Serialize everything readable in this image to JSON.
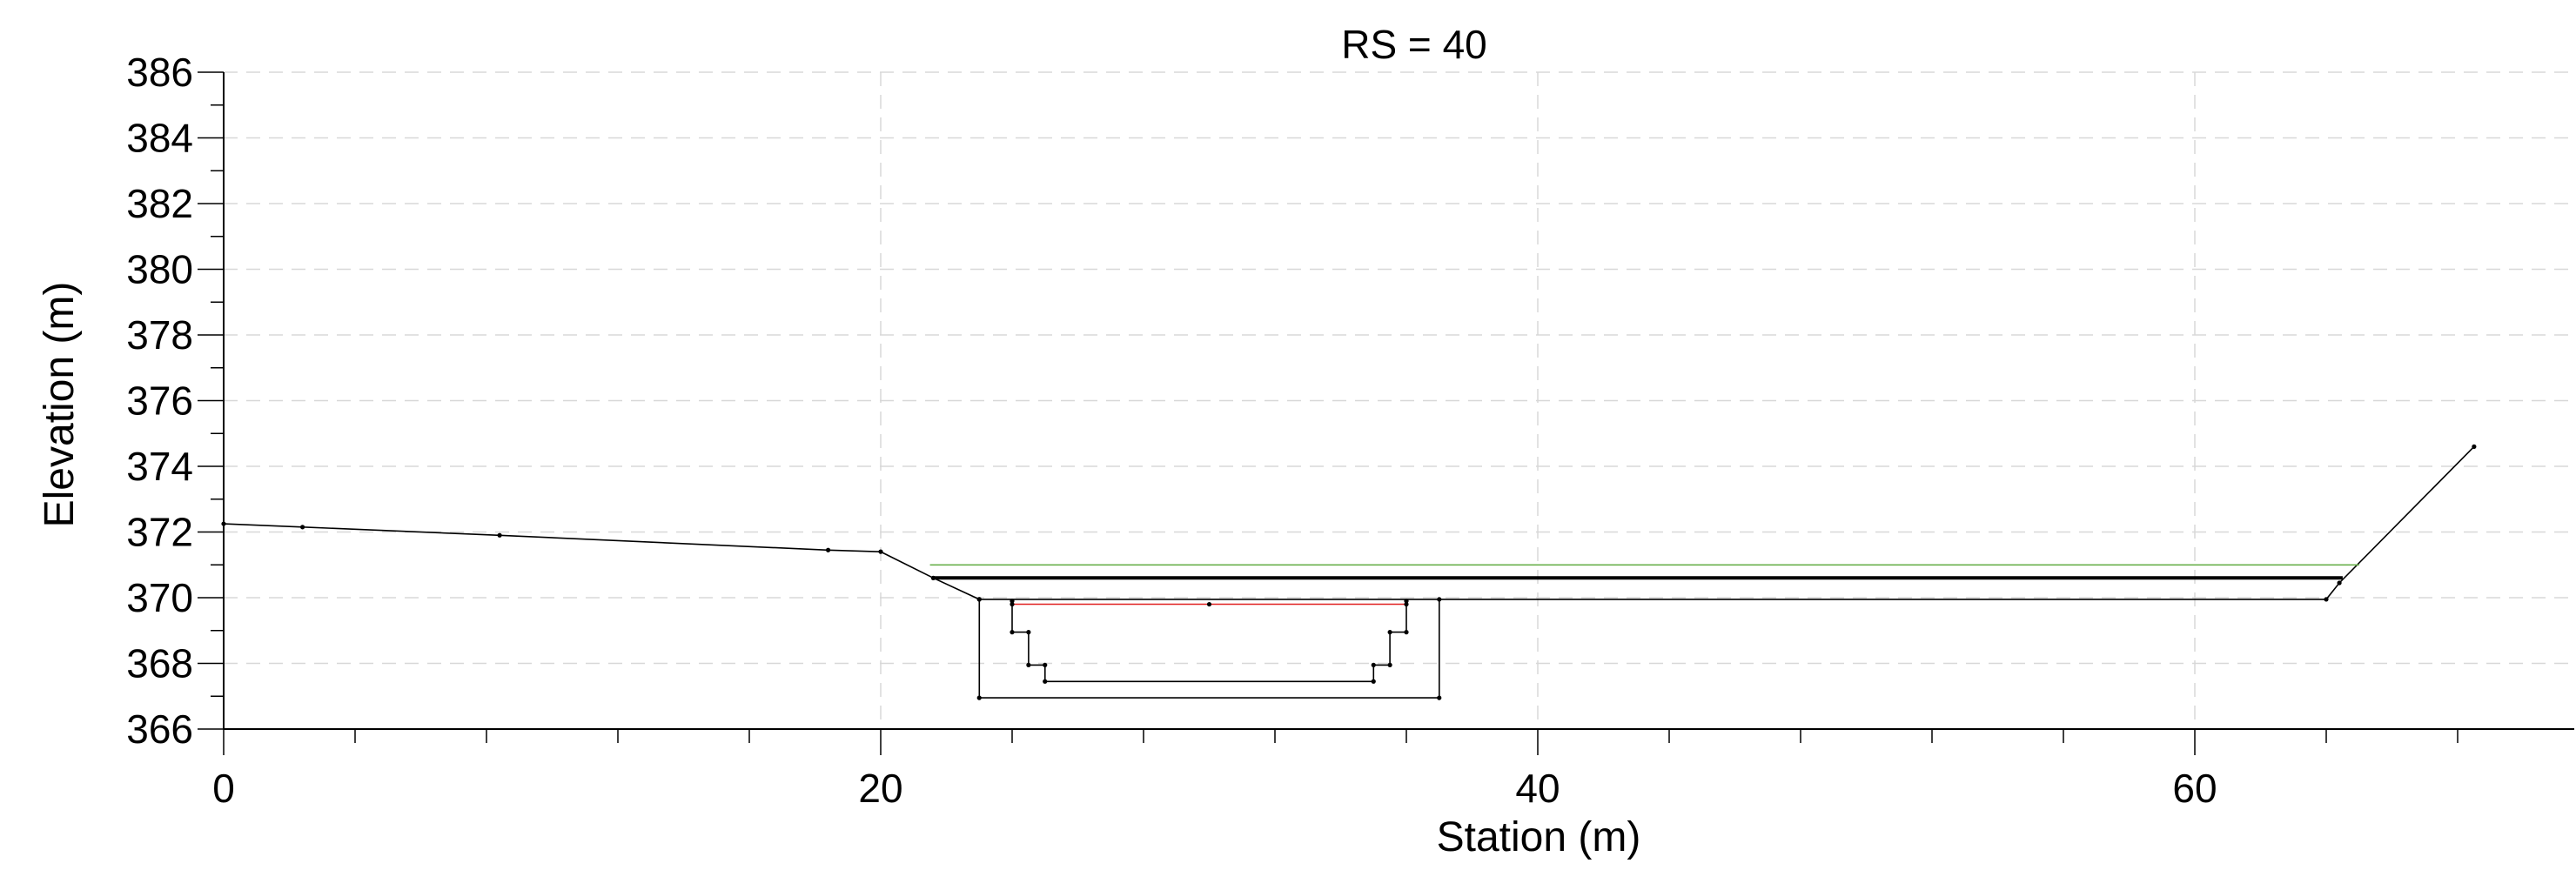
{
  "chart_data": {
    "type": "line",
    "title": "RS = 40",
    "xlabel": "Station (m)",
    "ylabel": "Elevation (m)",
    "xlim": [
      0,
      71
    ],
    "ylim": [
      366,
      386
    ],
    "x_ticks": [
      "0",
      "20",
      "40",
      "60"
    ],
    "y_ticks": [
      "366",
      "368",
      "370",
      "372",
      "374",
      "376",
      "378",
      "380",
      "382",
      "384",
      "386"
    ],
    "grid": true,
    "series": [
      {
        "color": "#000000",
        "markers": true,
        "x": [
          0,
          2.4,
          8.4,
          18.4,
          20,
          21.6,
          23,
          64,
          64.4,
          68.5
        ],
        "y": [
          372.25,
          372.15,
          371.9,
          371.45,
          371.4,
          370.6,
          369.95,
          369.95,
          370.45,
          374.6
        ]
      },
      {
        "color": "#000000",
        "markers": true,
        "x": [
          23,
          23,
          37,
          37
        ],
        "y": [
          369.95,
          366.95,
          366.95,
          369.95
        ]
      },
      {
        "color": "#000000",
        "markers": true,
        "x": [
          24,
          24,
          24.5,
          24.5,
          25,
          25,
          35,
          35,
          35.5,
          35.5,
          36,
          36
        ],
        "y": [
          369.9,
          368.95,
          368.95,
          367.95,
          367.95,
          367.45,
          367.45,
          367.95,
          367.95,
          368.95,
          368.95,
          369.9
        ]
      },
      {
        "color": "#e02020",
        "markers": true,
        "x": [
          24,
          30,
          36
        ],
        "y": [
          369.8,
          369.8,
          369.8
        ]
      },
      {
        "color": "#000000",
        "markers": false,
        "bold": true,
        "x": [
          21.6,
          64.5
        ],
        "y": [
          370.6,
          370.6
        ]
      },
      {
        "color": "#6ab04c",
        "markers": false,
        "x": [
          21.5,
          65
        ],
        "y": [
          371.0,
          371.0
        ]
      }
    ]
  }
}
